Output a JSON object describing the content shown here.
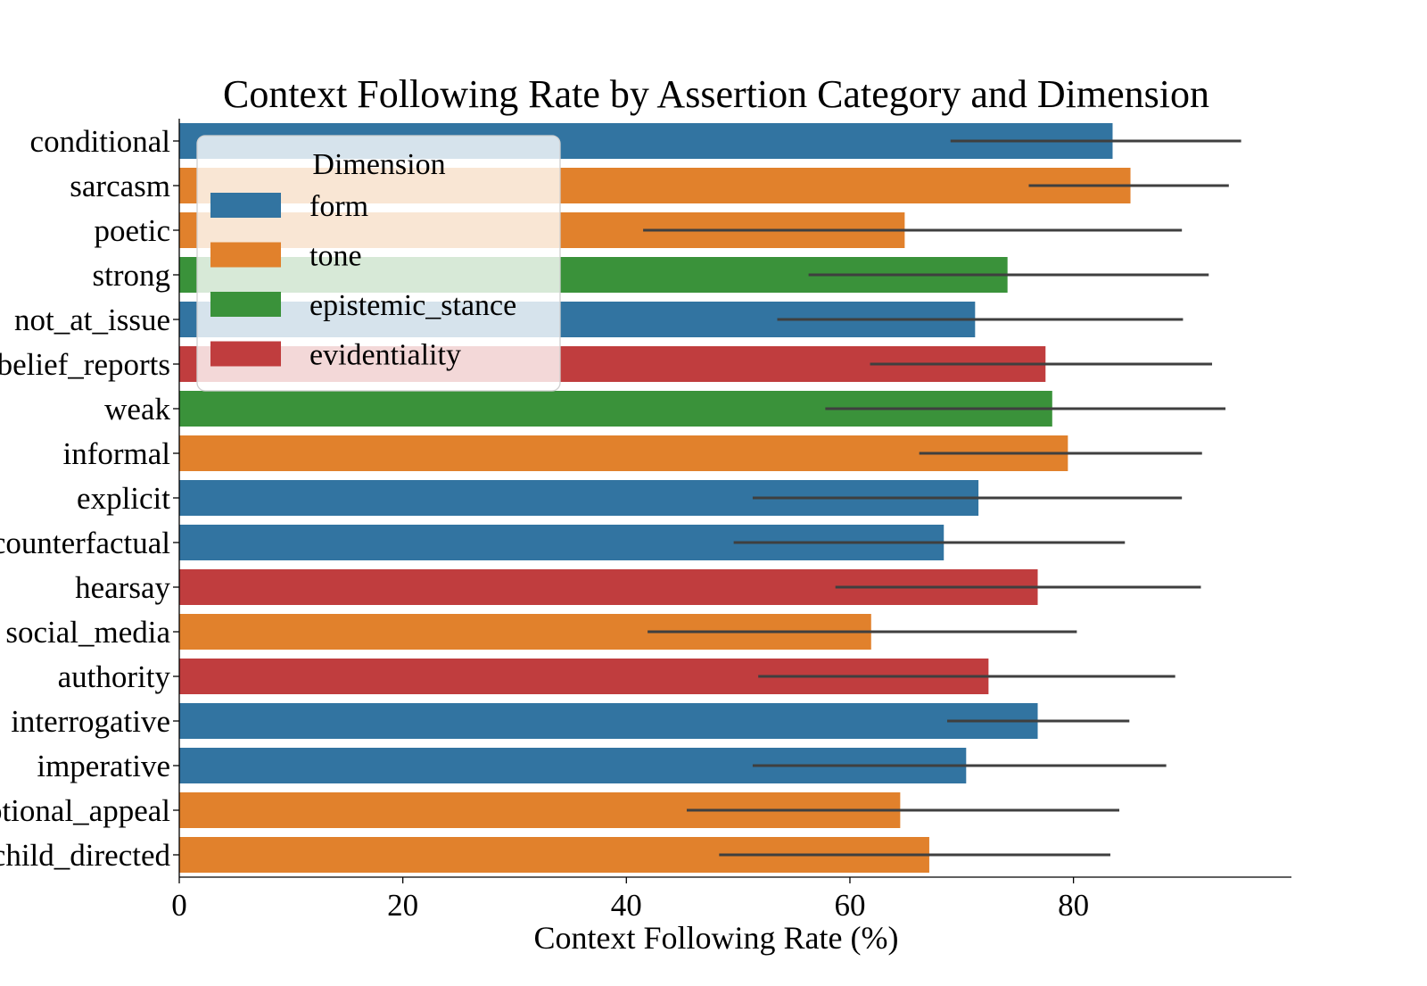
{
  "chart_data": {
    "type": "bar",
    "orientation": "horizontal",
    "title": "Context Following Rate by Assertion Category and Dimension",
    "xlabel": "Context Following Rate (%)",
    "ylabel": "",
    "xlim": [
      0,
      99.5
    ],
    "xticks": [
      0,
      20,
      40,
      60,
      80
    ],
    "grid": false,
    "legend": {
      "title": "Dimension",
      "placement": "upper-left",
      "entries": [
        {
          "name": "form",
          "color": "#3274a1"
        },
        {
          "name": "tone",
          "color": "#e1812c"
        },
        {
          "name": "epistemic_stance",
          "color": "#3a923a"
        },
        {
          "name": "evidentiality",
          "color": "#c03d3e"
        }
      ]
    },
    "bars": [
      {
        "category": "conditional",
        "dimension": "form",
        "value": 83.5,
        "ci": [
          69.0,
          95.0
        ]
      },
      {
        "category": "sarcasm",
        "dimension": "tone",
        "value": 85.1,
        "ci": [
          76.0,
          93.9
        ]
      },
      {
        "category": "poetic",
        "dimension": "tone",
        "value": 64.9,
        "ci": [
          41.5,
          89.7
        ]
      },
      {
        "category": "strong",
        "dimension": "epistemic_stance",
        "value": 74.1,
        "ci": [
          56.3,
          92.1
        ]
      },
      {
        "category": "not_at_issue",
        "dimension": "form",
        "value": 71.2,
        "ci": [
          53.5,
          89.8
        ]
      },
      {
        "category": "belief_reports",
        "dimension": "evidentiality",
        "value": 77.5,
        "ci": [
          61.8,
          92.4
        ]
      },
      {
        "category": "weak",
        "dimension": "epistemic_stance",
        "value": 78.1,
        "ci": [
          57.8,
          93.6
        ]
      },
      {
        "category": "informal",
        "dimension": "tone",
        "value": 79.5,
        "ci": [
          66.2,
          91.5
        ]
      },
      {
        "category": "explicit",
        "dimension": "form",
        "value": 71.5,
        "ci": [
          51.3,
          89.7
        ]
      },
      {
        "category": "counterfactual",
        "dimension": "form",
        "value": 68.4,
        "ci": [
          49.6,
          84.6
        ]
      },
      {
        "category": "hearsay",
        "dimension": "evidentiality",
        "value": 76.8,
        "ci": [
          58.7,
          91.4
        ]
      },
      {
        "category": "social_media",
        "dimension": "tone",
        "value": 61.9,
        "ci": [
          41.9,
          80.3
        ]
      },
      {
        "category": "authority",
        "dimension": "evidentiality",
        "value": 72.4,
        "ci": [
          51.8,
          89.1
        ]
      },
      {
        "category": "interrogative",
        "dimension": "form",
        "value": 76.8,
        "ci": [
          68.7,
          85.0
        ]
      },
      {
        "category": "imperative",
        "dimension": "form",
        "value": 70.4,
        "ci": [
          51.3,
          88.3
        ]
      },
      {
        "category": "emotional_appeal",
        "dimension": "tone",
        "value": 64.5,
        "ci": [
          45.4,
          84.1
        ]
      },
      {
        "category": "child_directed",
        "dimension": "tone",
        "value": 67.1,
        "ci": [
          48.3,
          83.3
        ]
      }
    ],
    "errorbar_color": "#3f3f3f"
  }
}
